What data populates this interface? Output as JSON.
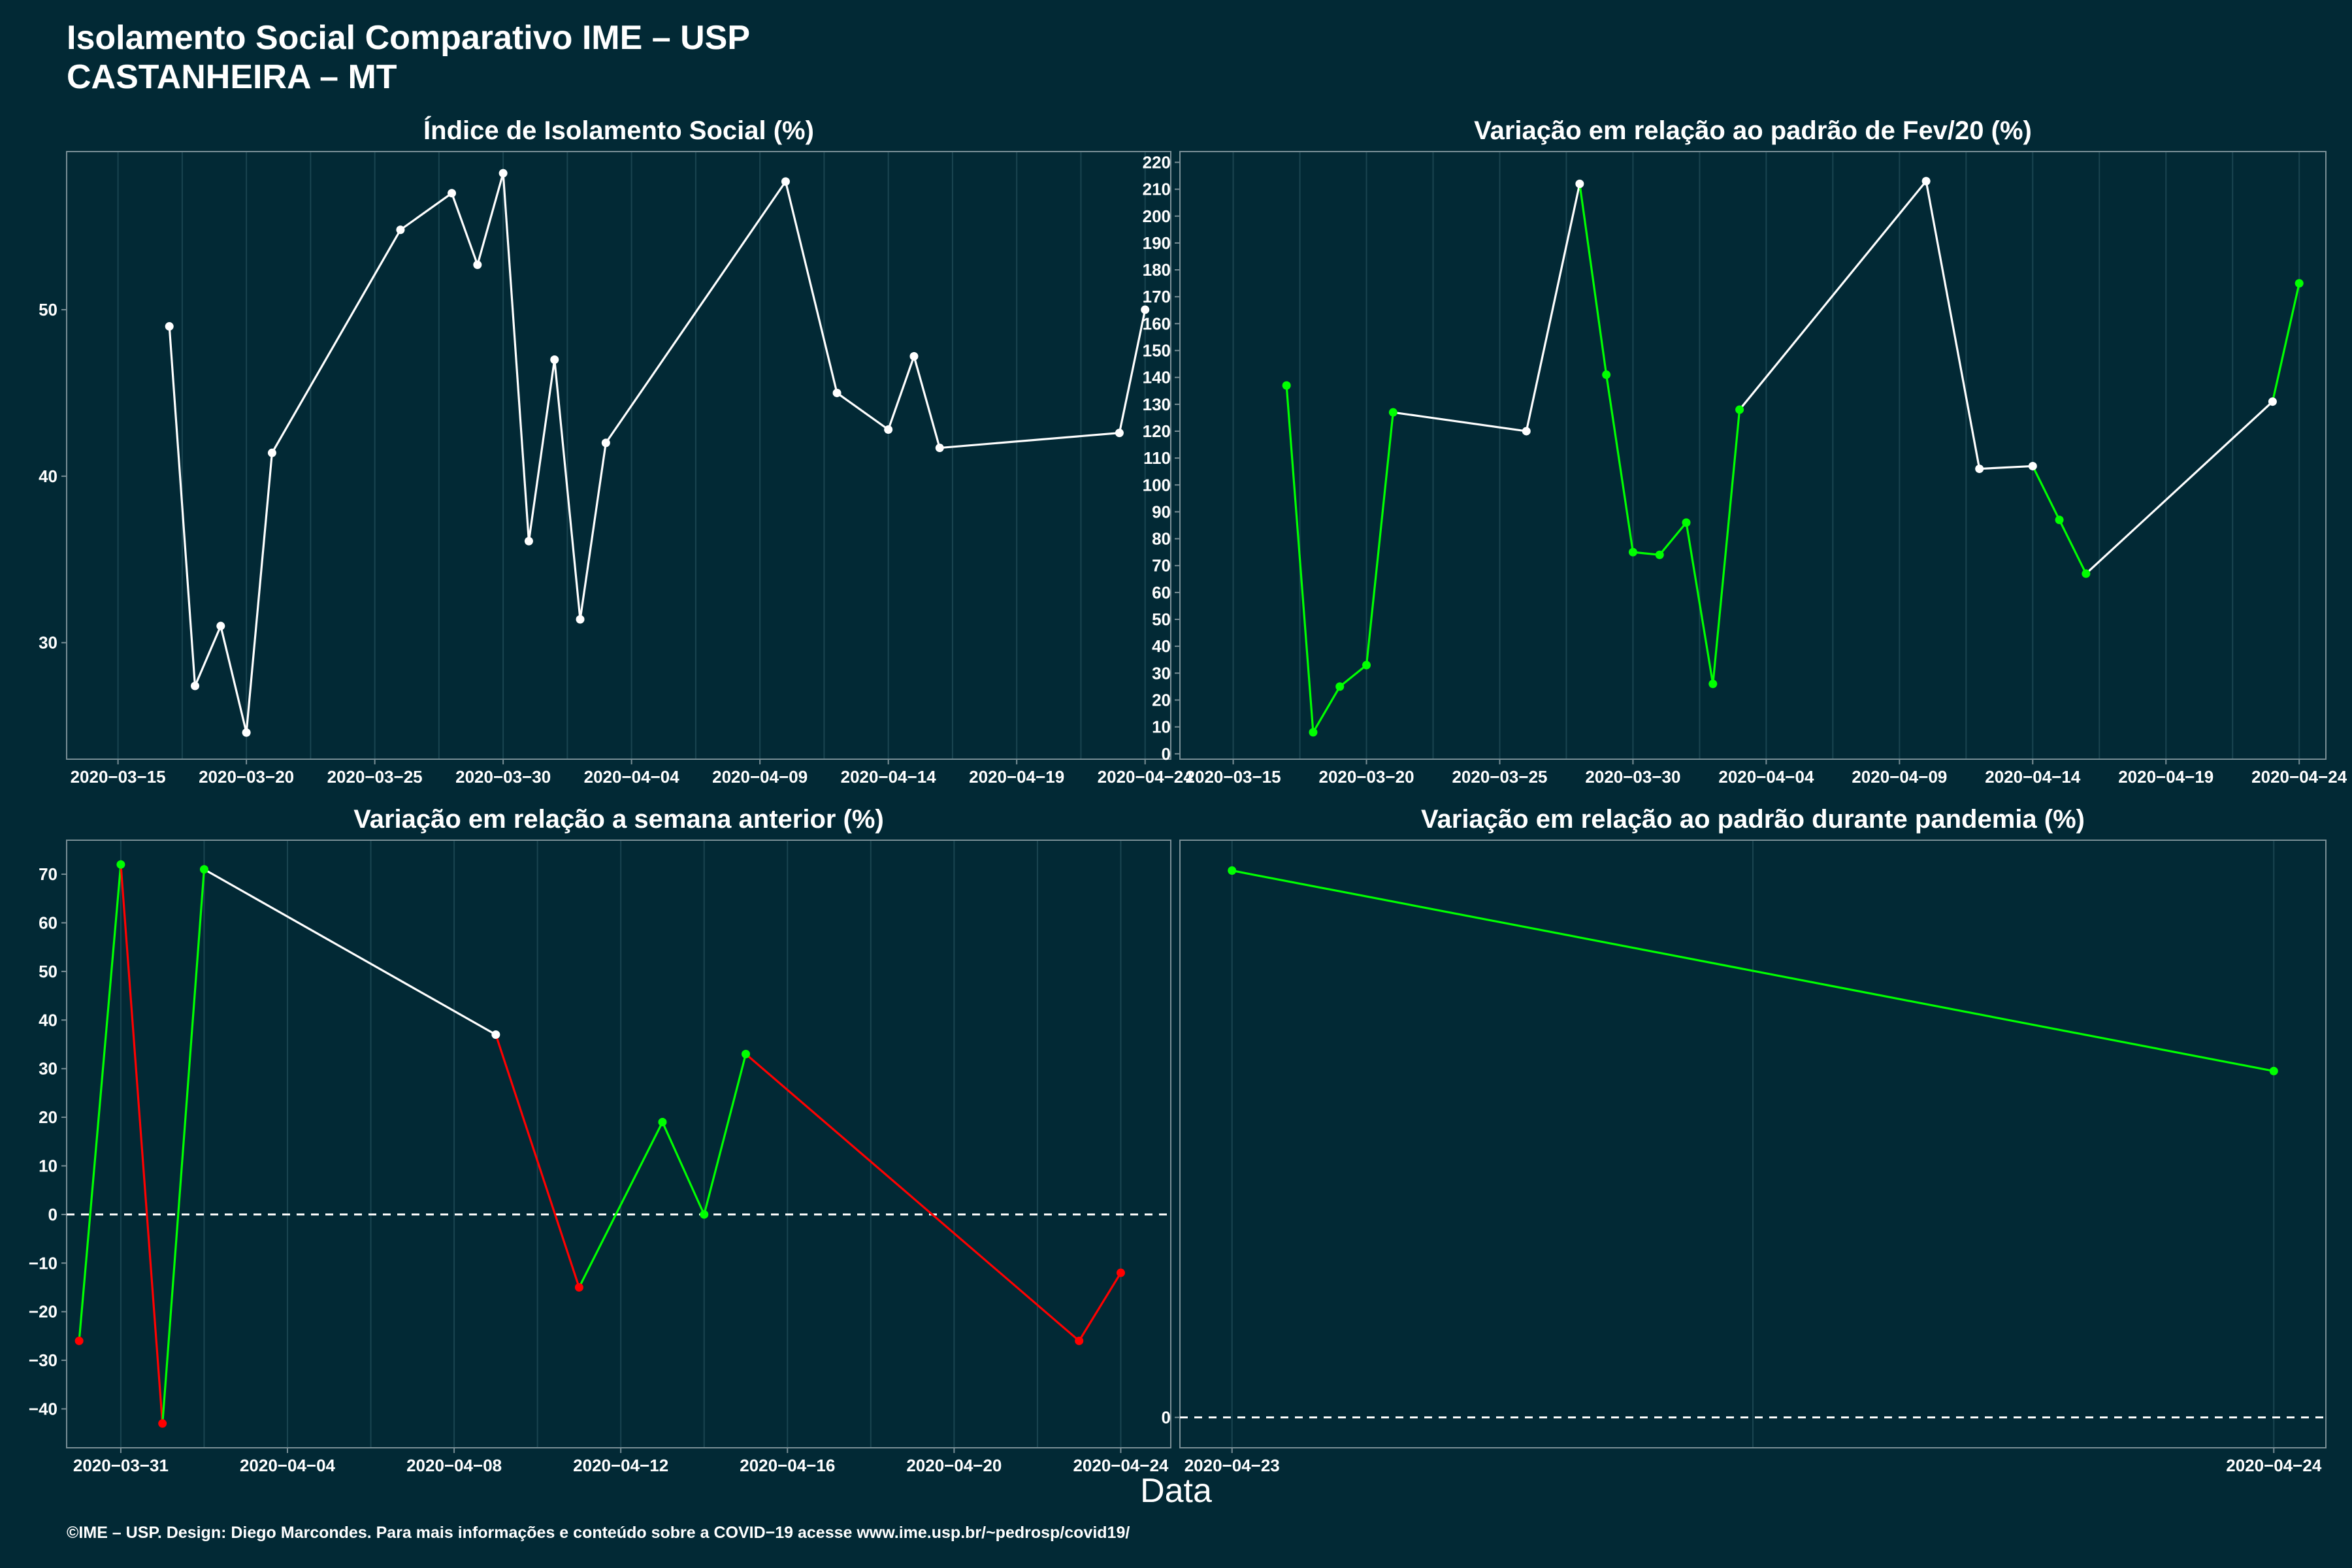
{
  "header": {
    "title_line1": "Isolamento Social Comparativo IME – USP",
    "title_line2": "CASTANHEIRA – MT"
  },
  "x_axis_title": "Data",
  "footer": "©IME – USP. Design: Diego Marcondes. Para mais informações e conteúdo sobre a COVID−19 acesse www.ime.usp.br/~pedrosp/covid19/",
  "colors": {
    "background": "#022935",
    "line_neutral": "#ffffff",
    "increase": "#00ff00",
    "decrease": "#ff0000",
    "grid": "#1a4450",
    "border": "#7a8f96"
  },
  "chart_data": [
    {
      "type": "line",
      "title": "Índice de Isolamento Social (%)",
      "x_type": "date",
      "xlim": [
        "2020-03-13",
        "2020-04-25"
      ],
      "ylim": [
        23,
        59.5
      ],
      "x_ticks": [
        "2020-03-15",
        "2020-03-20",
        "2020-03-25",
        "2020-03-30",
        "2020-04-04",
        "2020-04-09",
        "2020-04-14",
        "2020-04-19",
        "2020-04-24"
      ],
      "y_ticks": [
        30,
        40,
        50
      ],
      "zero_line": false,
      "points": [
        {
          "x": "2020-03-17",
          "y": 49.0,
          "c": "w"
        },
        {
          "x": "2020-03-18",
          "y": 27.4,
          "c": "w"
        },
        {
          "x": "2020-03-19",
          "y": 31.0,
          "c": "w"
        },
        {
          "x": "2020-03-20",
          "y": 24.6,
          "c": "w"
        },
        {
          "x": "2020-03-21",
          "y": 41.4,
          "c": "w"
        },
        {
          "x": "2020-03-26",
          "y": 54.8,
          "c": "w"
        },
        {
          "x": "2020-03-28",
          "y": 57.0,
          "c": "w"
        },
        {
          "x": "2020-03-29",
          "y": 52.7,
          "c": "w"
        },
        {
          "x": "2020-03-30",
          "y": 58.2,
          "c": "w"
        },
        {
          "x": "2020-03-31",
          "y": 36.1,
          "c": "w"
        },
        {
          "x": "2020-04-01",
          "y": 47.0,
          "c": "w"
        },
        {
          "x": "2020-04-02",
          "y": 31.4,
          "c": "w"
        },
        {
          "x": "2020-04-03",
          "y": 42.0,
          "c": "w"
        },
        {
          "x": "2020-04-10",
          "y": 57.7,
          "c": "w"
        },
        {
          "x": "2020-04-12",
          "y": 45.0,
          "c": "w"
        },
        {
          "x": "2020-04-14",
          "y": 42.8,
          "c": "w"
        },
        {
          "x": "2020-04-15",
          "y": 47.2,
          "c": "w"
        },
        {
          "x": "2020-04-16",
          "y": 41.7,
          "c": "w"
        },
        {
          "x": "2020-04-23",
          "y": 42.6,
          "c": "w"
        },
        {
          "x": "2020-04-24",
          "y": 50.0,
          "c": "w"
        }
      ]
    },
    {
      "type": "line",
      "title": "Variação em relação ao padrão de Fev/20 (%)",
      "x_type": "date",
      "xlim": [
        "2020-03-13",
        "2020-04-25"
      ],
      "ylim": [
        -2,
        224
      ],
      "x_ticks": [
        "2020-03-15",
        "2020-03-20",
        "2020-03-25",
        "2020-03-30",
        "2020-04-04",
        "2020-04-09",
        "2020-04-14",
        "2020-04-19",
        "2020-04-24"
      ],
      "y_ticks": [
        0,
        10,
        20,
        30,
        40,
        50,
        60,
        70,
        80,
        90,
        100,
        110,
        120,
        130,
        140,
        150,
        160,
        170,
        180,
        190,
        200,
        210,
        220
      ],
      "zero_line": false,
      "points": [
        {
          "x": "2020-03-17",
          "y": 137,
          "c": "g"
        },
        {
          "x": "2020-03-18",
          "y": 8,
          "c": "g"
        },
        {
          "x": "2020-03-19",
          "y": 25,
          "c": "g"
        },
        {
          "x": "2020-03-20",
          "y": 33,
          "c": "g"
        },
        {
          "x": "2020-03-21",
          "y": 127,
          "c": "g"
        },
        {
          "x": "2020-03-26",
          "y": 120,
          "c": "w"
        },
        {
          "x": "2020-03-28",
          "y": 212,
          "c": "w"
        },
        {
          "x": "2020-03-29",
          "y": 141,
          "c": "g"
        },
        {
          "x": "2020-03-30",
          "y": 75,
          "c": "g"
        },
        {
          "x": "2020-03-31",
          "y": 74,
          "c": "g"
        },
        {
          "x": "2020-04-01",
          "y": 86,
          "c": "g"
        },
        {
          "x": "2020-04-02",
          "y": 26,
          "c": "g"
        },
        {
          "x": "2020-04-03",
          "y": 128,
          "c": "g"
        },
        {
          "x": "2020-04-10",
          "y": 213,
          "c": "w"
        },
        {
          "x": "2020-04-12",
          "y": 106,
          "c": "w"
        },
        {
          "x": "2020-04-14",
          "y": 107,
          "c": "w"
        },
        {
          "x": "2020-04-15",
          "y": 87,
          "c": "g"
        },
        {
          "x": "2020-04-16",
          "y": 67,
          "c": "g"
        },
        {
          "x": "2020-04-23",
          "y": 131,
          "c": "w"
        },
        {
          "x": "2020-04-24",
          "y": 175,
          "c": "g"
        }
      ]
    },
    {
      "type": "line",
      "title": "Variação em relação a semana anterior (%)",
      "x_type": "date",
      "xlim": [
        "2020-03-29.7",
        "2020-04-25.2"
      ],
      "ylim": [
        -48,
        77
      ],
      "x_ticks": [
        "2020-03-31",
        "2020-04-04",
        "2020-04-08",
        "2020-04-12",
        "2020-04-16",
        "2020-04-20",
        "2020-04-24"
      ],
      "y_ticks": [
        -40,
        -30,
        -20,
        -10,
        0,
        10,
        20,
        30,
        40,
        50,
        60,
        70
      ],
      "zero_line": true,
      "points": [
        {
          "x": "2020-03-30",
          "y": -26,
          "c": "r"
        },
        {
          "x": "2020-03-31",
          "y": 72,
          "c": "g"
        },
        {
          "x": "2020-04-01",
          "y": -43,
          "c": "r"
        },
        {
          "x": "2020-04-02",
          "y": 71,
          "c": "g"
        },
        {
          "x": "2020-04-09",
          "y": 37,
          "c": "w"
        },
        {
          "x": "2020-04-11",
          "y": -15,
          "c": "r"
        },
        {
          "x": "2020-04-13",
          "y": 19,
          "c": "g"
        },
        {
          "x": "2020-04-14",
          "y": 0,
          "c": "g"
        },
        {
          "x": "2020-04-15",
          "y": 33,
          "c": "g"
        },
        {
          "x": "2020-04-23",
          "y": -26,
          "c": "r"
        },
        {
          "x": "2020-04-24",
          "y": -12,
          "c": "r"
        }
      ]
    },
    {
      "type": "line",
      "title": "Variação em relação ao padrão durante pandemia (%)",
      "x_type": "date",
      "xlim": [
        "2020-04-22.95",
        "2020-04-24.05"
      ],
      "ylim": [
        -5,
        95
      ],
      "x_ticks": [
        "2020-04-23",
        "2020-04-24"
      ],
      "y_ticks": [
        0
      ],
      "zero_line": true,
      "points": [
        {
          "x": "2020-04-23",
          "y": 90,
          "c": "g"
        },
        {
          "x": "2020-04-24",
          "y": 57,
          "c": "g"
        }
      ]
    }
  ]
}
